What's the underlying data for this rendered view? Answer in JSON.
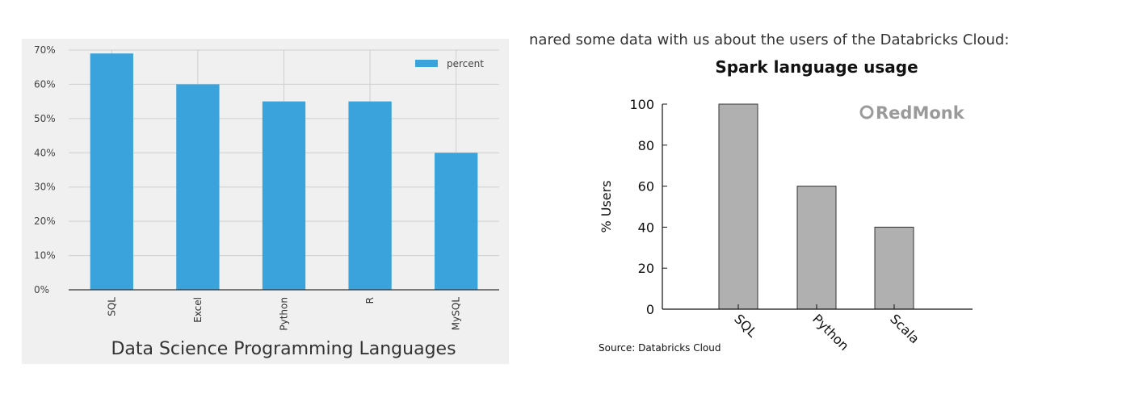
{
  "colors": {
    "left_bar": "#3aa3db",
    "left_bg": "#f0f0f0",
    "left_grid": "#cfcfcf",
    "right_bar": "#b0b0b0",
    "right_bar_edge": "#333333",
    "redmonk": "#9a9a9a"
  },
  "left_chart": {
    "xlabel": "Data Science Programming Languages",
    "legend_label": "percent",
    "y_ticks": [
      "0%",
      "10%",
      "20%",
      "30%",
      "40%",
      "50%",
      "60%",
      "70%"
    ]
  },
  "right_panel": {
    "caption_fragment": "nared some data with us about the users of the Databricks Cloud:",
    "logo_text": "RedMonk",
    "source": "Source: Databricks Cloud",
    "y_ticks": [
      "0",
      "20",
      "40",
      "60",
      "80",
      "100"
    ]
  },
  "chart_data": [
    {
      "type": "bar",
      "title": "",
      "xlabel": "Data Science Programming Languages",
      "ylabel": "",
      "categories": [
        "SQL",
        "Excel",
        "Python",
        "R",
        "MySQL"
      ],
      "series": [
        {
          "name": "percent",
          "values": [
            0.69,
            0.6,
            0.55,
            0.55,
            0.4
          ]
        }
      ],
      "ylim": [
        0,
        0.7
      ],
      "grid": true,
      "legend": "top-right"
    },
    {
      "type": "bar",
      "title": "Spark language usage",
      "xlabel": "",
      "ylabel": "% Users",
      "categories": [
        "SQL",
        "Python",
        "Scala"
      ],
      "values": [
        100,
        60,
        40
      ],
      "ylim": [
        0,
        100
      ],
      "grid": false
    }
  ]
}
